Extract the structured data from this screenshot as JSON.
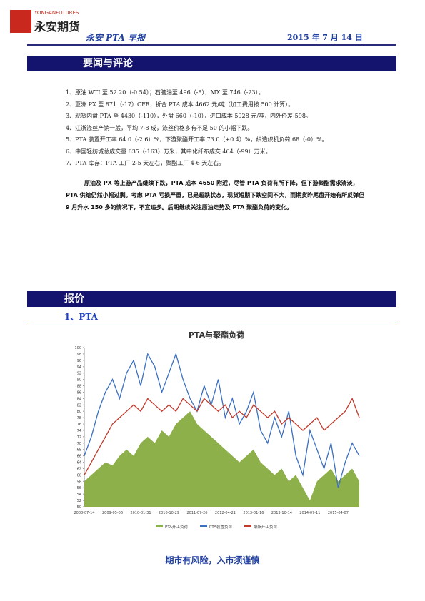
{
  "header": {
    "logo_en": "YONGANFUTURES",
    "logo_cn": "永安期货",
    "title": "永安 PTA 早报",
    "date": "2015 年 7 月 14 日"
  },
  "news": {
    "heading": "要闻与评论",
    "items": [
      "1、原油 WTI 至 52.20（-0.54）；石脑油至 496（-8），MX 至 746（-23）。",
      "2、亚洲 PX 至 871（-17）CFR，折合 PTA 成本 4662 元/吨（加工费用按 500 计算）。",
      "3、现货内盘 PTA 至 4430（-110），外盘 660（-10），进口成本 5028 元/吨，内外价差-598。",
      "4、江浙涤丝产销一般，平均 7-8 成，涤丝价格多有不足 50 的小幅下跌。",
      "5、PTA 装置开工率 64.0（-2.6）%，下游聚酯开工率 73.0（+0.4）%，织造织机负荷 68（-0）%。",
      "6、中国轻纺城总成交量 635（-163）万米，其中化纤布成交 464（-99）万米。",
      "7、PTA 库存：PTA 工厂 2-5 天左右，聚酯工厂 4-6 天左右。"
    ],
    "comment": "原油及 PX 等上游产品继续下跌，PTA 成本 4650 附近，尽管 PTA 负荷有所下降，但下游聚酯需求清淡，PTA 供给仍然小幅过剩。考虑 PTA 亏损严重，已是超跌状态，现货短期下跌空间不大，而期货昨尾盘开始有所反弹但 9 月升水 150 多的情况下，不宜追多。后期继续关注原油走势及 PTA 聚酯负荷的变化。"
  },
  "quotes": {
    "heading": "报价",
    "subheading": "1、PTA"
  },
  "chart": {
    "type": "line",
    "title": "PTA与聚酯负荷",
    "categories": [
      "2008-07-14",
      null,
      null,
      null,
      "2009-05-06",
      null,
      null,
      null,
      "2010-01-31",
      null,
      null,
      null,
      "2010-10-29",
      null,
      null,
      null,
      "2011-07-26",
      null,
      null,
      null,
      "2012-04-21",
      null,
      null,
      null,
      "2013-01-16",
      null,
      null,
      null,
      "2013-10-14",
      null,
      null,
      null,
      "2014-07-11",
      null,
      null,
      null,
      "2015-04-07",
      null,
      null,
      null
    ],
    "ylim": [
      50,
      100
    ],
    "yticks": [
      50,
      52,
      54,
      56,
      58,
      60,
      62,
      64,
      66,
      68,
      70,
      72,
      74,
      76,
      78,
      80,
      82,
      84,
      86,
      88,
      90,
      92,
      94,
      96,
      98,
      100
    ],
    "series": [
      {
        "name": "PTA开工负荷",
        "color": "#8db04a",
        "values": [
          58,
          60,
          62,
          64,
          63,
          66,
          68,
          66,
          70,
          72,
          70,
          74,
          72,
          76,
          78,
          80,
          76,
          74,
          72,
          70,
          68,
          66,
          64,
          66,
          68,
          64,
          62,
          60,
          62,
          58,
          60,
          56,
          52,
          58,
          60,
          62,
          58,
          60,
          62,
          58
        ]
      },
      {
        "name": "PTA装置负荷",
        "color": "#3a6fc2",
        "values": [
          66,
          72,
          80,
          86,
          90,
          84,
          92,
          96,
          88,
          98,
          94,
          86,
          92,
          98,
          90,
          84,
          80,
          88,
          82,
          90,
          78,
          84,
          76,
          80,
          86,
          74,
          70,
          78,
          72,
          80,
          66,
          60,
          74,
          68,
          62,
          70,
          56,
          64,
          70,
          66
        ]
      },
      {
        "name": "聚酯开工负荷",
        "color": "#c0392b",
        "values": [
          60,
          64,
          68,
          72,
          76,
          78,
          80,
          82,
          80,
          84,
          82,
          80,
          82,
          80,
          84,
          82,
          80,
          84,
          82,
          80,
          82,
          78,
          80,
          78,
          82,
          80,
          78,
          80,
          76,
          78,
          76,
          74,
          76,
          78,
          74,
          76,
          78,
          80,
          84,
          78
        ]
      }
    ]
  },
  "footer": "期市有风险，入市须谨慎"
}
